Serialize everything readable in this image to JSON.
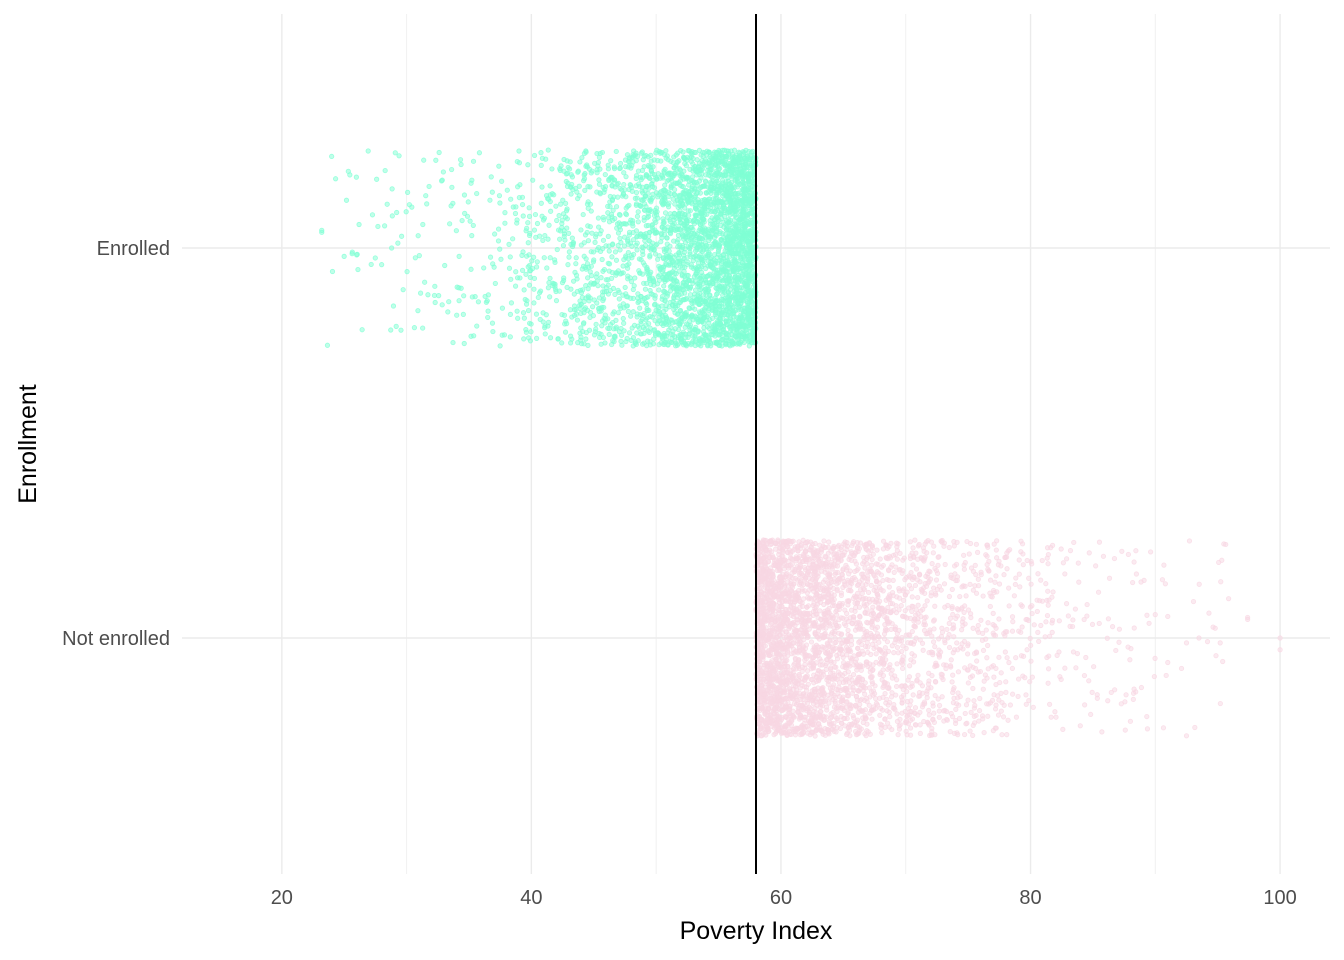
{
  "chart_data": {
    "type": "scatter",
    "subtype": "jitter strip plot",
    "title": "",
    "xlabel": "Poverty Index",
    "ylabel": "Enrollment",
    "xlim": [
      12,
      104
    ],
    "x_ticks": [
      20,
      40,
      60,
      80,
      100
    ],
    "x_tick_labels": [
      "20",
      "40",
      "60",
      "80",
      "100"
    ],
    "categories": [
      "Enrolled",
      "Not enrolled"
    ],
    "grid": true,
    "legend": "none",
    "threshold_line": {
      "x": 58,
      "color": "#000000"
    },
    "series": [
      {
        "category": "Enrolled",
        "color": "#7fffd4",
        "approx_points": 3500,
        "x_min": 23.2,
        "x_max": 58,
        "x_density_shape": "increasing toward threshold (left-skewed tail)",
        "sparse_points": [
          [
            23.2,
            0.18
          ],
          [
            23.2,
            0.16
          ],
          [
            26.0,
            -0.07
          ],
          [
            26.1,
            -0.22
          ],
          [
            27.7,
            0.22
          ],
          [
            28.0,
            -0.17
          ],
          [
            28.8,
            0.0
          ],
          [
            29.3,
            0.05
          ],
          [
            29.6,
            0.12
          ],
          [
            30.7,
            -0.1
          ],
          [
            31.3,
            0.24
          ]
        ]
      },
      {
        "category": "Not enrolled",
        "color": "#f8d7e3",
        "approx_points": 3500,
        "x_min": 58,
        "x_max": 100,
        "x_density_shape": "decreasing away from threshold (right-skewed tail)",
        "sparse_points": [
          [
            97.4,
            0.21
          ],
          [
            97.4,
            0.19
          ],
          [
            100.0,
            0.0
          ],
          [
            100.0,
            -0.12
          ],
          [
            95.4,
            -0.24
          ],
          [
            95.2,
            -0.05
          ],
          [
            94.8,
            0.1
          ],
          [
            93.5,
            0.0
          ],
          [
            91.0,
            0.22
          ],
          [
            91.0,
            -0.25
          ],
          [
            92.5,
            -0.05
          ],
          [
            89.5,
            0.15
          ]
        ]
      }
    ]
  },
  "axes": {
    "x_title": "Poverty Index",
    "y_title": "Enrollment"
  }
}
